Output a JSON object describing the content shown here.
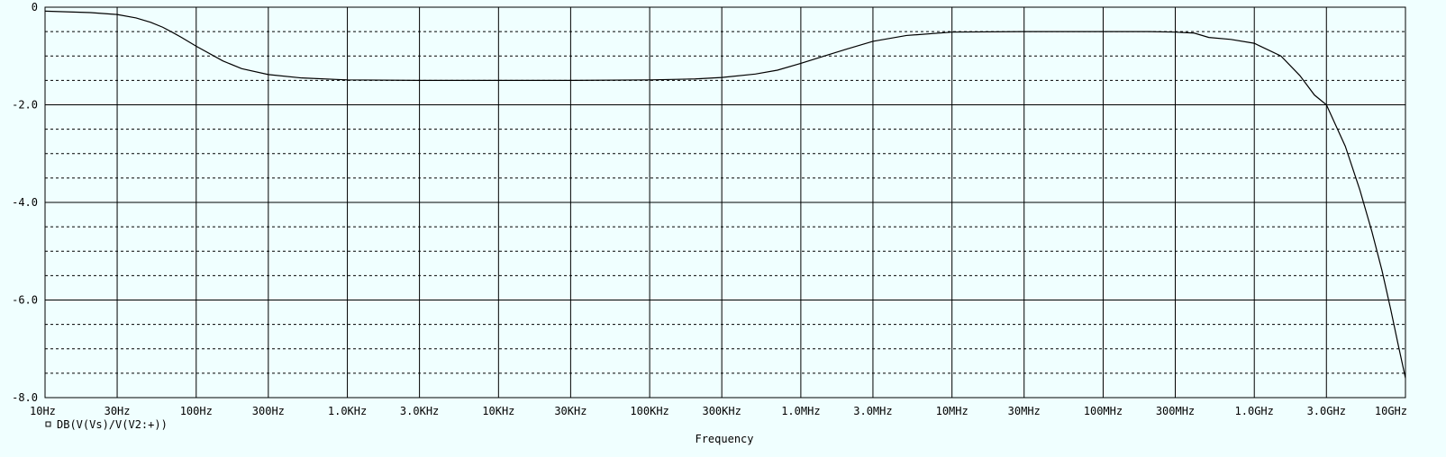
{
  "colors": {
    "background": "#f0ffff",
    "foreground": "#000000"
  },
  "chart_data": {
    "type": "line",
    "title": "",
    "xlabel": "Frequency",
    "ylabel": "",
    "x_scale": "log",
    "xlim": [
      10,
      10000000000
    ],
    "ylim": [
      -8.0,
      0
    ],
    "grid": true,
    "legend_position": "bottom-left",
    "x_ticks": [
      {
        "value": 10,
        "label": "10Hz"
      },
      {
        "value": 30,
        "label": "30Hz"
      },
      {
        "value": 100,
        "label": "100Hz"
      },
      {
        "value": 300,
        "label": "300Hz"
      },
      {
        "value": 1000,
        "label": "1.0KHz"
      },
      {
        "value": 3000,
        "label": "3.0KHz"
      },
      {
        "value": 10000,
        "label": "10KHz"
      },
      {
        "value": 30000,
        "label": "30KHz"
      },
      {
        "value": 100000,
        "label": "100KHz"
      },
      {
        "value": 300000,
        "label": "300KHz"
      },
      {
        "value": 1000000,
        "label": "1.0MHz"
      },
      {
        "value": 3000000,
        "label": "3.0MHz"
      },
      {
        "value": 10000000,
        "label": "10MHz"
      },
      {
        "value": 30000000,
        "label": "30MHz"
      },
      {
        "value": 100000000,
        "label": "100MHz"
      },
      {
        "value": 300000000,
        "label": "300MHz"
      },
      {
        "value": 1000000000,
        "label": "1.0GHz"
      },
      {
        "value": 3000000000,
        "label": "3.0GHz"
      },
      {
        "value": 10000000000,
        "label": "10GHz"
      }
    ],
    "y_ticks": [
      {
        "value": 0,
        "label": "0"
      },
      {
        "value": -2.0,
        "label": "-2.0"
      },
      {
        "value": -4.0,
        "label": "-4.0"
      },
      {
        "value": -6.0,
        "label": "-6.0"
      },
      {
        "value": -8.0,
        "label": "-8.0"
      }
    ],
    "y_minor_gridlines": [
      -0.5,
      -1.0,
      -1.5,
      -2.5,
      -3.0,
      -3.5,
      -4.5,
      -5.0,
      -5.5,
      -6.5,
      -7.0,
      -7.5
    ],
    "series": [
      {
        "name": "DB(V(Vs)/V(V2:+))",
        "x": [
          10,
          20,
          30,
          40,
          50,
          60,
          70,
          80,
          100,
          150,
          200,
          300,
          500,
          1000,
          3000,
          10000,
          30000,
          100000,
          200000,
          300000,
          500000,
          700000,
          1000000,
          1500000,
          2000000,
          3000000,
          5000000,
          10000000,
          30000000,
          100000000,
          200000000,
          300000000,
          400000000,
          500000000,
          700000000,
          1000000000,
          1500000000,
          2000000000,
          2500000000,
          3000000000,
          4000000000,
          5000000000,
          6000000000,
          7000000000,
          8000000000,
          9000000000,
          10000000000
        ],
        "y": [
          -0.08,
          -0.11,
          -0.15,
          -0.22,
          -0.31,
          -0.41,
          -0.52,
          -0.62,
          -0.8,
          -1.1,
          -1.26,
          -1.38,
          -1.45,
          -1.49,
          -1.5,
          -1.5,
          -1.5,
          -1.49,
          -1.47,
          -1.44,
          -1.37,
          -1.29,
          -1.15,
          -0.98,
          -0.86,
          -0.7,
          -0.58,
          -0.51,
          -0.5,
          -0.5,
          -0.5,
          -0.51,
          -0.53,
          -0.62,
          -0.66,
          -0.74,
          -1.0,
          -1.4,
          -1.8,
          -2.0,
          -2.85,
          -3.75,
          -4.6,
          -5.4,
          -6.2,
          -6.95,
          -7.6
        ]
      }
    ]
  }
}
